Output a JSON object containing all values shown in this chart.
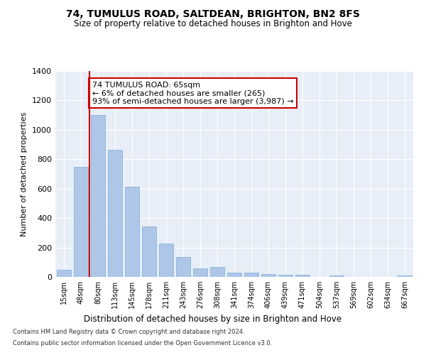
{
  "title": "74, TUMULUS ROAD, SALTDEAN, BRIGHTON, BN2 8FS",
  "subtitle": "Size of property relative to detached houses in Brighton and Hove",
  "xlabel": "Distribution of detached houses by size in Brighton and Hove",
  "ylabel": "Number of detached properties",
  "categories": [
    "15sqm",
    "48sqm",
    "80sqm",
    "113sqm",
    "145sqm",
    "178sqm",
    "211sqm",
    "243sqm",
    "276sqm",
    "308sqm",
    "341sqm",
    "374sqm",
    "406sqm",
    "439sqm",
    "471sqm",
    "504sqm",
    "537sqm",
    "569sqm",
    "602sqm",
    "634sqm",
    "667sqm"
  ],
  "values": [
    50,
    750,
    1100,
    865,
    615,
    345,
    225,
    135,
    60,
    70,
    30,
    30,
    20,
    15,
    15,
    0,
    12,
    0,
    0,
    0,
    12
  ],
  "bar_color": "#aec6e8",
  "bar_edge_color": "#7bafd4",
  "vline_color": "#cc0000",
  "vline_x": 1.515,
  "annotation_text": "74 TUMULUS ROAD: 65sqm\n← 6% of detached houses are smaller (265)\n93% of semi-detached houses are larger (3,987) →",
  "annotation_box_color": "#ffffff",
  "annotation_box_edge_color": "#cc0000",
  "ylim": [
    0,
    1400
  ],
  "yticks": [
    0,
    200,
    400,
    600,
    800,
    1000,
    1200,
    1400
  ],
  "bg_color": "#e8eef7",
  "footnote1": "Contains HM Land Registry data © Crown copyright and database right 2024.",
  "footnote2": "Contains public sector information licensed under the Open Government Licence v3.0."
}
